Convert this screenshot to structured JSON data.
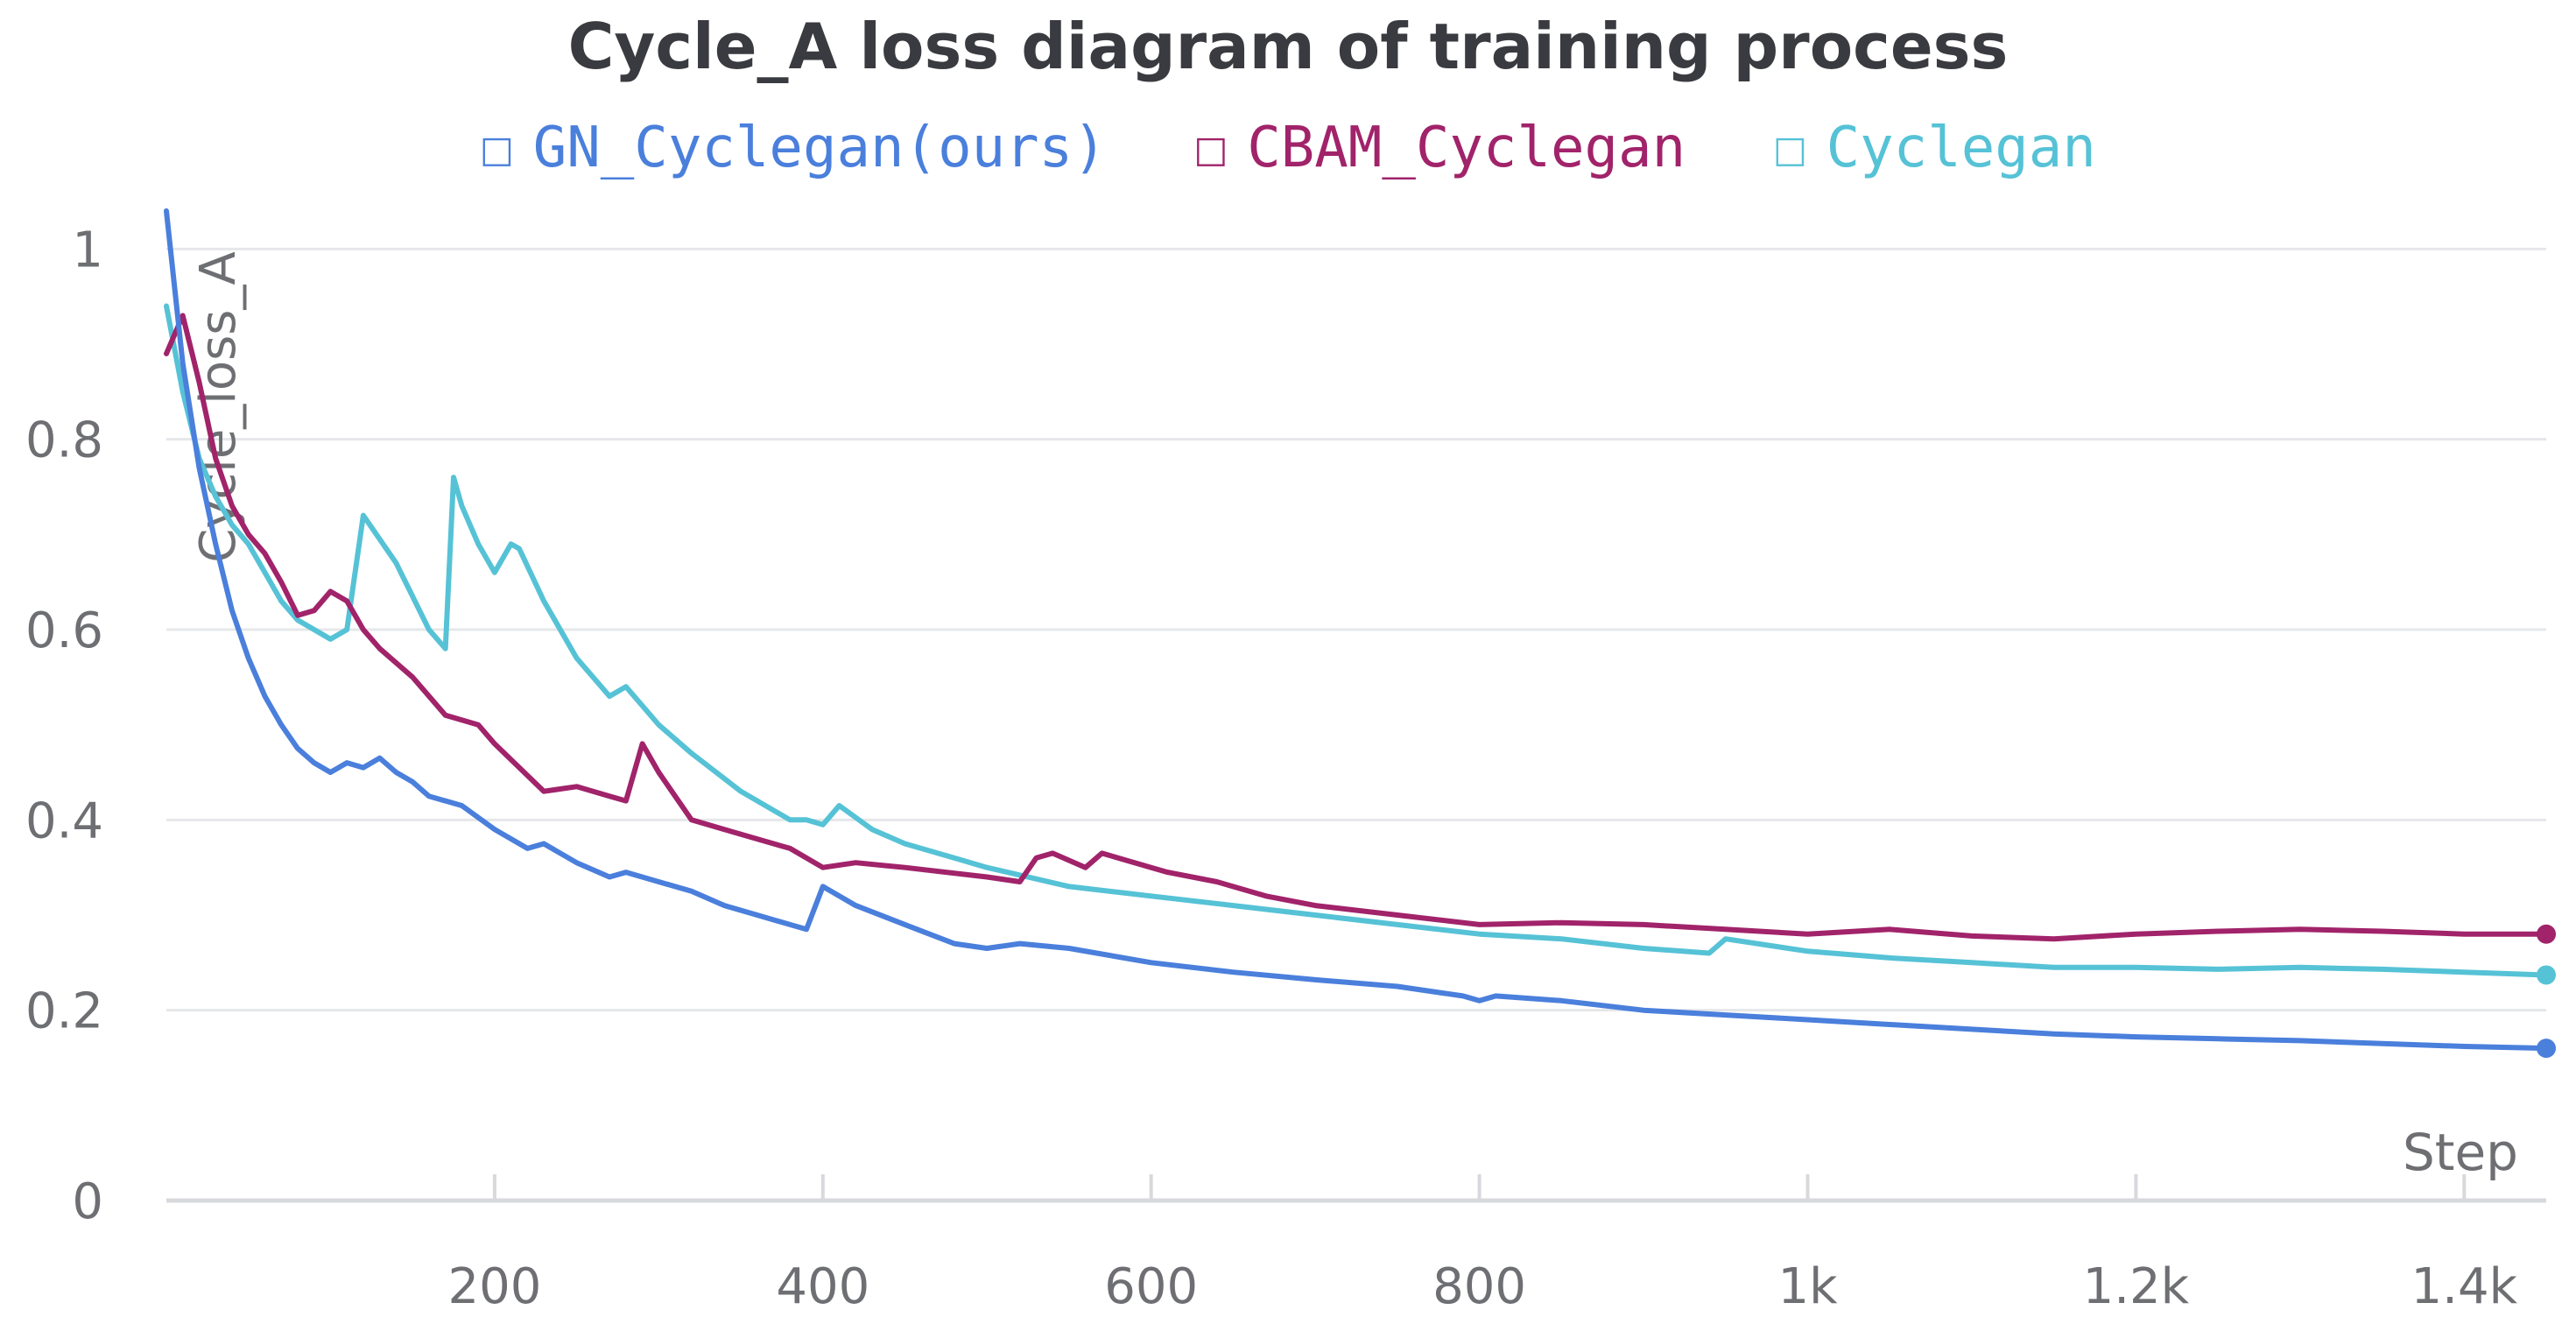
{
  "chart_data": {
    "type": "line",
    "title": "Cycle_A loss diagram of training process",
    "xlabel": "Step",
    "ylabel": "Cycle_loss_A",
    "xlim": [
      0,
      1450
    ],
    "ylim": [
      0,
      1.05
    ],
    "grid": true,
    "legend_position": "top-center",
    "x_ticks": [
      {
        "value": 200,
        "label": "200"
      },
      {
        "value": 400,
        "label": "400"
      },
      {
        "value": 600,
        "label": "600"
      },
      {
        "value": 800,
        "label": "800"
      },
      {
        "value": 1000,
        "label": "1k"
      },
      {
        "value": 1200,
        "label": "1.2k"
      },
      {
        "value": 1400,
        "label": "1.4k"
      }
    ],
    "y_ticks": [
      {
        "value": 0,
        "label": "0"
      },
      {
        "value": 0.2,
        "label": "0.2"
      },
      {
        "value": 0.4,
        "label": "0.4"
      },
      {
        "value": 0.6,
        "label": "0.6"
      },
      {
        "value": 0.8,
        "label": "0.8"
      },
      {
        "value": 1,
        "label": "1"
      }
    ],
    "series": [
      {
        "name": "GN_Cyclegan(ours)",
        "color": "#4a7fdc",
        "legend_icon": "☐",
        "end_marker": true,
        "x": [
          0,
          10,
          20,
          30,
          40,
          50,
          60,
          70,
          80,
          90,
          100,
          110,
          120,
          130,
          140,
          150,
          160,
          180,
          200,
          220,
          230,
          250,
          270,
          280,
          300,
          320,
          340,
          360,
          380,
          390,
          400,
          420,
          450,
          480,
          500,
          520,
          550,
          600,
          650,
          700,
          750,
          790,
          800,
          810,
          850,
          900,
          950,
          1000,
          1050,
          1100,
          1150,
          1200,
          1250,
          1300,
          1350,
          1400,
          1450
        ],
        "y": [
          1.04,
          0.88,
          0.77,
          0.69,
          0.62,
          0.57,
          0.53,
          0.5,
          0.475,
          0.46,
          0.45,
          0.46,
          0.455,
          0.465,
          0.45,
          0.44,
          0.425,
          0.415,
          0.39,
          0.37,
          0.375,
          0.355,
          0.34,
          0.345,
          0.335,
          0.325,
          0.31,
          0.3,
          0.29,
          0.285,
          0.33,
          0.31,
          0.29,
          0.27,
          0.265,
          0.27,
          0.265,
          0.25,
          0.24,
          0.232,
          0.225,
          0.215,
          0.21,
          0.215,
          0.21,
          0.2,
          0.195,
          0.19,
          0.185,
          0.18,
          0.175,
          0.172,
          0.17,
          0.168,
          0.165,
          0.162,
          0.16
        ]
      },
      {
        "name": "CBAM_Cyclegan",
        "color": "#a1236a",
        "legend_icon": "☐",
        "end_marker": true,
        "x": [
          0,
          10,
          20,
          30,
          40,
          50,
          60,
          70,
          80,
          90,
          100,
          110,
          120,
          130,
          150,
          170,
          180,
          190,
          200,
          230,
          250,
          270,
          280,
          290,
          300,
          320,
          340,
          360,
          380,
          400,
          420,
          450,
          500,
          520,
          530,
          540,
          560,
          570,
          600,
          610,
          640,
          670,
          700,
          750,
          800,
          850,
          900,
          950,
          1000,
          1050,
          1100,
          1150,
          1200,
          1250,
          1300,
          1350,
          1400,
          1450
        ],
        "y": [
          0.89,
          0.93,
          0.86,
          0.78,
          0.73,
          0.7,
          0.68,
          0.65,
          0.615,
          0.62,
          0.64,
          0.63,
          0.6,
          0.58,
          0.55,
          0.51,
          0.505,
          0.5,
          0.48,
          0.43,
          0.435,
          0.425,
          0.42,
          0.48,
          0.45,
          0.4,
          0.39,
          0.38,
          0.37,
          0.35,
          0.355,
          0.35,
          0.34,
          0.335,
          0.36,
          0.365,
          0.35,
          0.365,
          0.35,
          0.345,
          0.335,
          0.32,
          0.31,
          0.3,
          0.29,
          0.292,
          0.29,
          0.285,
          0.28,
          0.285,
          0.278,
          0.275,
          0.28,
          0.283,
          0.285,
          0.283,
          0.28,
          0.28
        ]
      },
      {
        "name": "Cyclegan",
        "color": "#56c2d6",
        "legend_icon": "☐",
        "end_marker": true,
        "x": [
          0,
          10,
          20,
          30,
          40,
          50,
          60,
          70,
          80,
          90,
          100,
          110,
          120,
          140,
          160,
          170,
          175,
          180,
          190,
          200,
          210,
          215,
          230,
          250,
          270,
          280,
          300,
          320,
          350,
          380,
          390,
          400,
          410,
          430,
          450,
          480,
          500,
          550,
          600,
          650,
          700,
          750,
          800,
          850,
          900,
          940,
          950,
          1000,
          1050,
          1100,
          1150,
          1200,
          1250,
          1300,
          1350,
          1400,
          1450
        ],
        "y": [
          0.94,
          0.85,
          0.78,
          0.74,
          0.71,
          0.69,
          0.66,
          0.63,
          0.61,
          0.6,
          0.59,
          0.6,
          0.72,
          0.67,
          0.6,
          0.58,
          0.76,
          0.73,
          0.69,
          0.66,
          0.69,
          0.685,
          0.63,
          0.57,
          0.53,
          0.54,
          0.5,
          0.47,
          0.43,
          0.4,
          0.4,
          0.395,
          0.415,
          0.39,
          0.375,
          0.36,
          0.35,
          0.33,
          0.32,
          0.31,
          0.3,
          0.29,
          0.28,
          0.275,
          0.265,
          0.26,
          0.275,
          0.262,
          0.255,
          0.25,
          0.245,
          0.245,
          0.243,
          0.245,
          0.243,
          0.24,
          0.237
        ]
      }
    ]
  }
}
